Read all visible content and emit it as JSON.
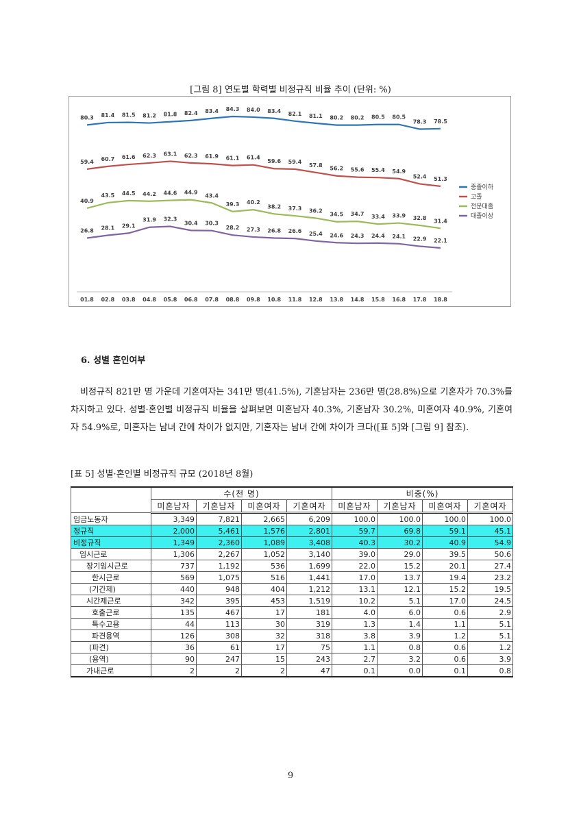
{
  "figure_caption": "[그림 8] 연도별 학력별 비정규직 비율 추이 (단위: %)",
  "chart_data": {
    "type": "line",
    "categories": [
      "01.8",
      "02.8",
      "03.8",
      "04.8",
      "05.8",
      "06.8",
      "07.8",
      "08.8",
      "09.8",
      "10.8",
      "11.8",
      "12.8",
      "13.8",
      "14.8",
      "15.8",
      "16.8",
      "17.8",
      "18.8"
    ],
    "series": [
      {
        "name": "중졸이하",
        "color": "#2e75b6",
        "values": [
          80.3,
          81.4,
          81.5,
          81.2,
          81.8,
          82.4,
          83.4,
          84.3,
          84.0,
          83.4,
          82.1,
          81.1,
          80.2,
          80.2,
          80.5,
          80.5,
          78.3,
          78.5
        ],
        "value_labels": [
          "80.3",
          "81.4",
          "81.5",
          "81.2",
          "81.8",
          "82.4",
          "83.4",
          "84.3",
          "84.0",
          "83.4",
          "82.1",
          "81.1",
          "80.2",
          "80.2",
          "80.5",
          "80.5",
          "78.3",
          "78.5"
        ]
      },
      {
        "name": "고졸",
        "color": "#c0504d",
        "values": [
          59.4,
          60.7,
          61.6,
          62.3,
          63.1,
          62.3,
          61.9,
          61.1,
          61.4,
          59.6,
          59.4,
          57.8,
          56.2,
          55.6,
          55.4,
          54.9,
          52.4,
          51.3
        ]
      },
      {
        "name": "전문대졸",
        "color": "#9bbb59",
        "values": [
          40.9,
          43.5,
          44.5,
          44.2,
          44.6,
          44.9,
          43.4,
          39.3,
          40.2,
          38.2,
          37.3,
          36.2,
          34.5,
          34.7,
          33.4,
          33.9,
          32.8,
          31.4
        ]
      },
      {
        "name": "대졸이상",
        "color": "#8064a2",
        "values": [
          26.8,
          28.1,
          29.1,
          31.9,
          32.3,
          30.4,
          30.3,
          28.2,
          27.3,
          26.8,
          26.6,
          25.4,
          24.6,
          24.3,
          24.4,
          24.1,
          22.9,
          22.1
        ]
      }
    ],
    "legend": "right"
  },
  "section": {
    "heading": "6. 성별 혼인여부",
    "paragraph": "비정규직 821만 명 가운데 기혼여자는 341만 명(41.5%), 기혼남자는 236만 명(28.8%)으로 기혼자가 70.3%를 차지하고 있다. 성별·혼인별 비정규직 비율을 살펴보면 미혼남자 40.3%, 기혼남자 30.2%, 미혼여자 40.9%, 기혼여자 54.9%로, 미혼자는 남녀 간에 차이가 없지만, 기혼자는 남녀 간에 차이가 크다([표 5]와 [그림 9] 참조)."
  },
  "table": {
    "caption": "[표 5] 성별·혼인별 비정규직 규모 (2018년 8월)",
    "group_headers": [
      "수(천 명)",
      "비중(%)"
    ],
    "column_headers": [
      "미혼남자",
      "기혼남자",
      "미혼여자",
      "기혼여자",
      "미혼남자",
      "기혼남자",
      "미혼여자",
      "기혼여자"
    ],
    "rows": [
      [
        "임금노동자",
        "3,349",
        "7,821",
        "2,665",
        "6,209",
        "100.0",
        "100.0",
        "100.0",
        "100.0"
      ],
      [
        "정규직",
        "2,000",
        "5,461",
        "1,576",
        "2,801",
        "59.7",
        "69.8",
        "59.1",
        "45.1"
      ],
      [
        "비정규직",
        "1,349",
        "2,360",
        "1,089",
        "3,408",
        "40.3",
        "30.2",
        "40.9",
        "54.9"
      ],
      [
        "임시근로",
        "1,306",
        "2,267",
        "1,052",
        "3,140",
        "39.0",
        "29.0",
        "39.5",
        "50.6"
      ],
      [
        "장기임시근로",
        "737",
        "1,192",
        "536",
        "1,699",
        "22.0",
        "15.2",
        "20.1",
        "27.4"
      ],
      [
        "한시근로",
        "569",
        "1,075",
        "516",
        "1,441",
        "17.0",
        "13.7",
        "19.4",
        "23.2"
      ],
      [
        "(기간제)",
        "440",
        "948",
        "404",
        "1,212",
        "13.1",
        "12.1",
        "15.2",
        "19.5"
      ],
      [
        "시간제근로",
        "342",
        "395",
        "453",
        "1,519",
        "10.2",
        "5.1",
        "17.0",
        "24.5"
      ],
      [
        "호출근로",
        "135",
        "467",
        "17",
        "181",
        "4.0",
        "6.0",
        "0.6",
        "2.9"
      ],
      [
        "특수고용",
        "44",
        "113",
        "30",
        "319",
        "1.3",
        "1.4",
        "1.1",
        "5.1"
      ],
      [
        "파견용역",
        "126",
        "308",
        "32",
        "318",
        "3.8",
        "3.9",
        "1.2",
        "5.1"
      ],
      [
        "(파견)",
        "36",
        "61",
        "17",
        "75",
        "1.1",
        "0.8",
        "0.6",
        "1.2"
      ],
      [
        "(용역)",
        "90",
        "247",
        "15",
        "243",
        "2.7",
        "3.2",
        "0.6",
        "3.9"
      ],
      [
        "가내근로",
        "2",
        "2",
        "2",
        "47",
        "0.1",
        "0.0",
        "0.1",
        "0.8"
      ]
    ]
  },
  "page_number": "9"
}
